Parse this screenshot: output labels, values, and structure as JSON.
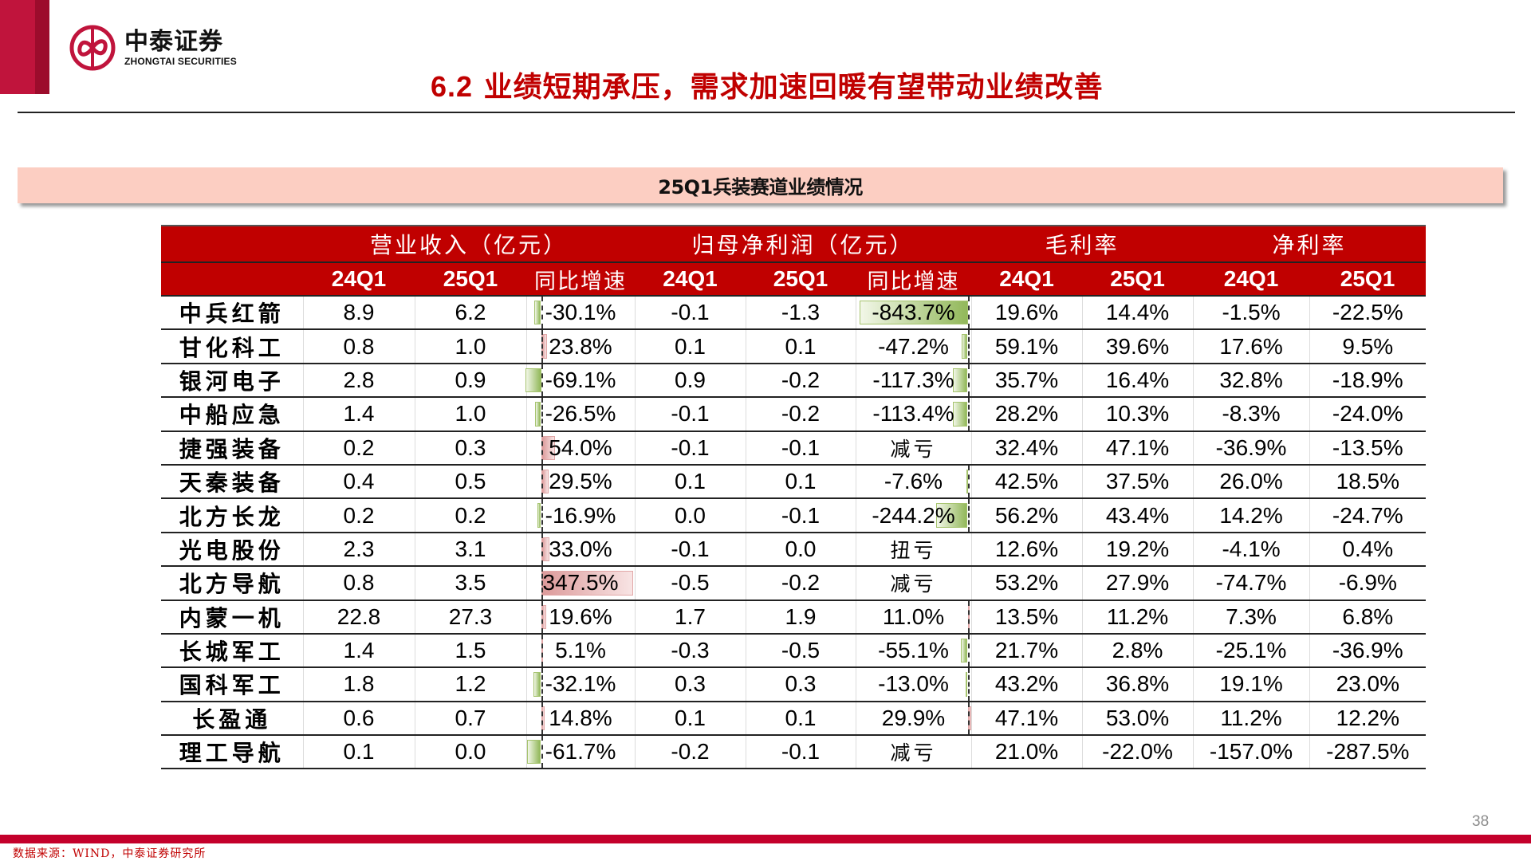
{
  "brand": {
    "name_cn": "中泰证券",
    "name_en": "ZHONGTAI SECURITIES",
    "color": "#c0143c"
  },
  "header": {
    "section_num": "6.2",
    "title": "业绩短期承压，需求加速回暖有望带动业绩改善"
  },
  "banner": {
    "title": "25Q1兵装赛道业绩情况"
  },
  "table": {
    "group_headers": [
      "营业收入（亿元）",
      "归母净利润（亿元）",
      "毛利率",
      "净利率"
    ],
    "sub_headers": [
      "24Q1",
      "25Q1",
      "同比增速",
      "24Q1",
      "25Q1",
      "同比增速",
      "24Q1",
      "25Q1",
      "24Q1",
      "25Q1"
    ],
    "colors": {
      "header_bg": "#c00000",
      "positive_bar": "#dc9a9a",
      "negative_bar": "#92b85a"
    },
    "rows": [
      {
        "name": "中兵红箭",
        "rev_24q1": "8.9",
        "rev_25q1": "6.2",
        "rev_yoy": "-30.1%",
        "np_24q1": "-0.1",
        "np_25q1": "-1.3",
        "np_yoy": "-843.7%",
        "gm_24q1": "19.6%",
        "gm_25q1": "14.4%",
        "nm_24q1": "-1.5%",
        "nm_25q1": "-22.5%"
      },
      {
        "name": "甘化科工",
        "rev_24q1": "0.8",
        "rev_25q1": "1.0",
        "rev_yoy": "23.8%",
        "np_24q1": "0.1",
        "np_25q1": "0.1",
        "np_yoy": "-47.2%",
        "gm_24q1": "59.1%",
        "gm_25q1": "39.6%",
        "nm_24q1": "17.6%",
        "nm_25q1": "9.5%"
      },
      {
        "name": "银河电子",
        "rev_24q1": "2.8",
        "rev_25q1": "0.9",
        "rev_yoy": "-69.1%",
        "np_24q1": "0.9",
        "np_25q1": "-0.2",
        "np_yoy": "-117.3%",
        "gm_24q1": "35.7%",
        "gm_25q1": "16.4%",
        "nm_24q1": "32.8%",
        "nm_25q1": "-18.9%"
      },
      {
        "name": "中船应急",
        "rev_24q1": "1.4",
        "rev_25q1": "1.0",
        "rev_yoy": "-26.5%",
        "np_24q1": "-0.1",
        "np_25q1": "-0.2",
        "np_yoy": "-113.4%",
        "gm_24q1": "28.2%",
        "gm_25q1": "10.3%",
        "nm_24q1": "-8.3%",
        "nm_25q1": "-24.0%"
      },
      {
        "name": "捷强装备",
        "rev_24q1": "0.2",
        "rev_25q1": "0.3",
        "rev_yoy": "54.0%",
        "np_24q1": "-0.1",
        "np_25q1": "-0.1",
        "np_yoy": "减亏",
        "gm_24q1": "32.4%",
        "gm_25q1": "47.1%",
        "nm_24q1": "-36.9%",
        "nm_25q1": "-13.5%"
      },
      {
        "name": "天秦装备",
        "rev_24q1": "0.4",
        "rev_25q1": "0.5",
        "rev_yoy": "29.5%",
        "np_24q1": "0.1",
        "np_25q1": "0.1",
        "np_yoy": "-7.6%",
        "gm_24q1": "42.5%",
        "gm_25q1": "37.5%",
        "nm_24q1": "26.0%",
        "nm_25q1": "18.5%"
      },
      {
        "name": "北方长龙",
        "rev_24q1": "0.2",
        "rev_25q1": "0.2",
        "rev_yoy": "-16.9%",
        "np_24q1": "0.0",
        "np_25q1": "-0.1",
        "np_yoy": "-244.2%",
        "gm_24q1": "56.2%",
        "gm_25q1": "43.4%",
        "nm_24q1": "14.2%",
        "nm_25q1": "-24.7%"
      },
      {
        "name": "光电股份",
        "rev_24q1": "2.3",
        "rev_25q1": "3.1",
        "rev_yoy": "33.0%",
        "np_24q1": "-0.1",
        "np_25q1": "0.0",
        "np_yoy": "扭亏",
        "gm_24q1": "12.6%",
        "gm_25q1": "19.2%",
        "nm_24q1": "-4.1%",
        "nm_25q1": "0.4%"
      },
      {
        "name": "北方导航",
        "rev_24q1": "0.8",
        "rev_25q1": "3.5",
        "rev_yoy": "347.5%",
        "np_24q1": "-0.5",
        "np_25q1": "-0.2",
        "np_yoy": "减亏",
        "gm_24q1": "53.2%",
        "gm_25q1": "27.9%",
        "nm_24q1": "-74.7%",
        "nm_25q1": "-6.9%"
      },
      {
        "name": "内蒙一机",
        "rev_24q1": "22.8",
        "rev_25q1": "27.3",
        "rev_yoy": "19.6%",
        "np_24q1": "1.7",
        "np_25q1": "1.9",
        "np_yoy": "11.0%",
        "gm_24q1": "13.5%",
        "gm_25q1": "11.2%",
        "nm_24q1": "7.3%",
        "nm_25q1": "6.8%"
      },
      {
        "name": "长城军工",
        "rev_24q1": "1.4",
        "rev_25q1": "1.5",
        "rev_yoy": "5.1%",
        "np_24q1": "-0.3",
        "np_25q1": "-0.5",
        "np_yoy": "-55.1%",
        "gm_24q1": "21.7%",
        "gm_25q1": "2.8%",
        "nm_24q1": "-25.1%",
        "nm_25q1": "-36.9%"
      },
      {
        "name": "国科军工",
        "rev_24q1": "1.8",
        "rev_25q1": "1.2",
        "rev_yoy": "-32.1%",
        "np_24q1": "0.3",
        "np_25q1": "0.3",
        "np_yoy": "-13.0%",
        "gm_24q1": "43.2%",
        "gm_25q1": "36.8%",
        "nm_24q1": "19.1%",
        "nm_25q1": "23.0%"
      },
      {
        "name": "长盈通",
        "rev_24q1": "0.6",
        "rev_25q1": "0.7",
        "rev_yoy": "14.8%",
        "np_24q1": "0.1",
        "np_25q1": "0.1",
        "np_yoy": "29.9%",
        "gm_24q1": "47.1%",
        "gm_25q1": "53.0%",
        "nm_24q1": "11.2%",
        "nm_25q1": "12.2%"
      },
      {
        "name": "理工导航",
        "rev_24q1": "0.1",
        "rev_25q1": "0.0",
        "rev_yoy": "-61.7%",
        "np_24q1": "-0.2",
        "np_25q1": "-0.1",
        "np_yoy": "减亏",
        "gm_24q1": "21.0%",
        "gm_25q1": "-22.0%",
        "nm_24q1": "-157.0%",
        "nm_25q1": "-287.5%"
      }
    ]
  },
  "footer": {
    "page_number": "38",
    "source": "数据来源：WIND，中泰证券研究所"
  }
}
